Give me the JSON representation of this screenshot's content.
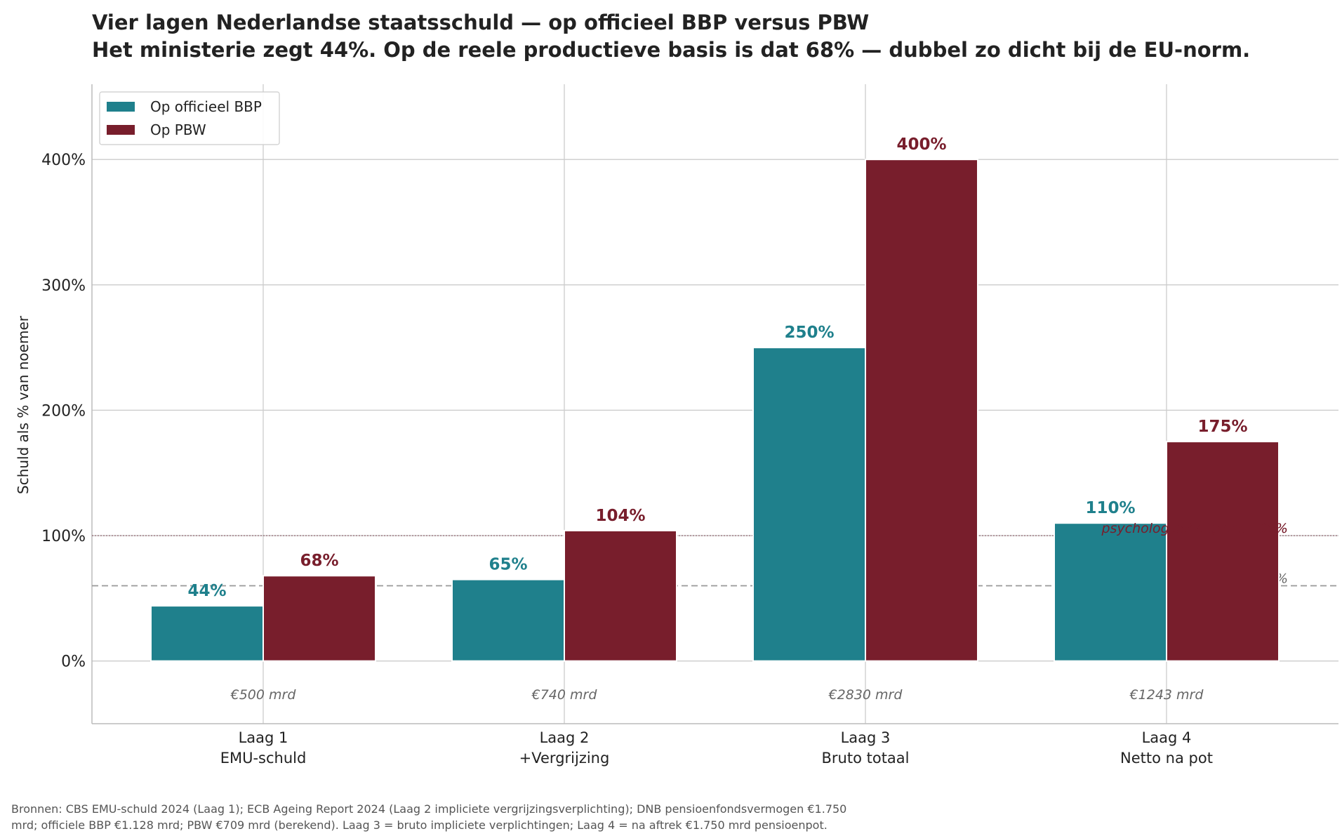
{
  "title_line1": "Vier lagen Nederlandse staatsschuld — op officieel BBP versus PBW",
  "title_line2": "Het ministerie zegt 44%. Op de reele productieve basis is dat 68% — dubbel zo dicht bij de EU-norm.",
  "source_line1": "Bronnen: CBS EMU-schuld 2024 (Laag 1); ECB Ageing Report 2024 (Laag 2 impliciete vergrijzingsverplichting); DNB pensioenfondsvermogen €1.750",
  "source_line2": "mrd; officiele BBP €1.128 mrd; PBW €709 mrd (berekend). Laag 3 = bruto impliciete verplichtingen; Laag 4 = na aftrek €1.750 mrd pensioenpot.",
  "colors": {
    "bbp": "#1f808c",
    "pbw": "#781e2c",
    "grid": "#cccccc",
    "refline": "#999999",
    "text": "#222222",
    "muted": "#666666"
  },
  "chart_data": {
    "type": "bar",
    "categories": [
      "Laag 1\nEMU-schuld",
      "Laag 2\n+Vergrijzing",
      "Laag 3\nBruto totaal",
      "Laag 4\nNetto na pot"
    ],
    "series": [
      {
        "name": "Op officieel BBP",
        "values": [
          44,
          65,
          250,
          110
        ],
        "labels": [
          "44%",
          "65%",
          "250%",
          "110%"
        ]
      },
      {
        "name": "Op PBW",
        "values": [
          68,
          104,
          400,
          175
        ],
        "labels": [
          "68%",
          "104%",
          "400%",
          "175%"
        ]
      }
    ],
    "amounts": [
      "€500 mrd",
      "€740 mrd",
      "€2830 mrd",
      "€1243 mrd"
    ],
    "ylabel": "Schuld als % van noemer",
    "yticks": [
      0,
      100,
      200,
      300,
      400
    ],
    "ytick_labels": [
      "0%",
      "100%",
      "200%",
      "300%",
      "400%"
    ],
    "ylim": [
      -50,
      460
    ],
    "reference_lines": [
      {
        "value": 60,
        "label": "EU-norm 60%",
        "style": "dashed"
      },
      {
        "value": 100,
        "label": "psychologische grens 100%",
        "style": "dotted"
      }
    ],
    "legend_position": "top-left",
    "grid": true
  }
}
